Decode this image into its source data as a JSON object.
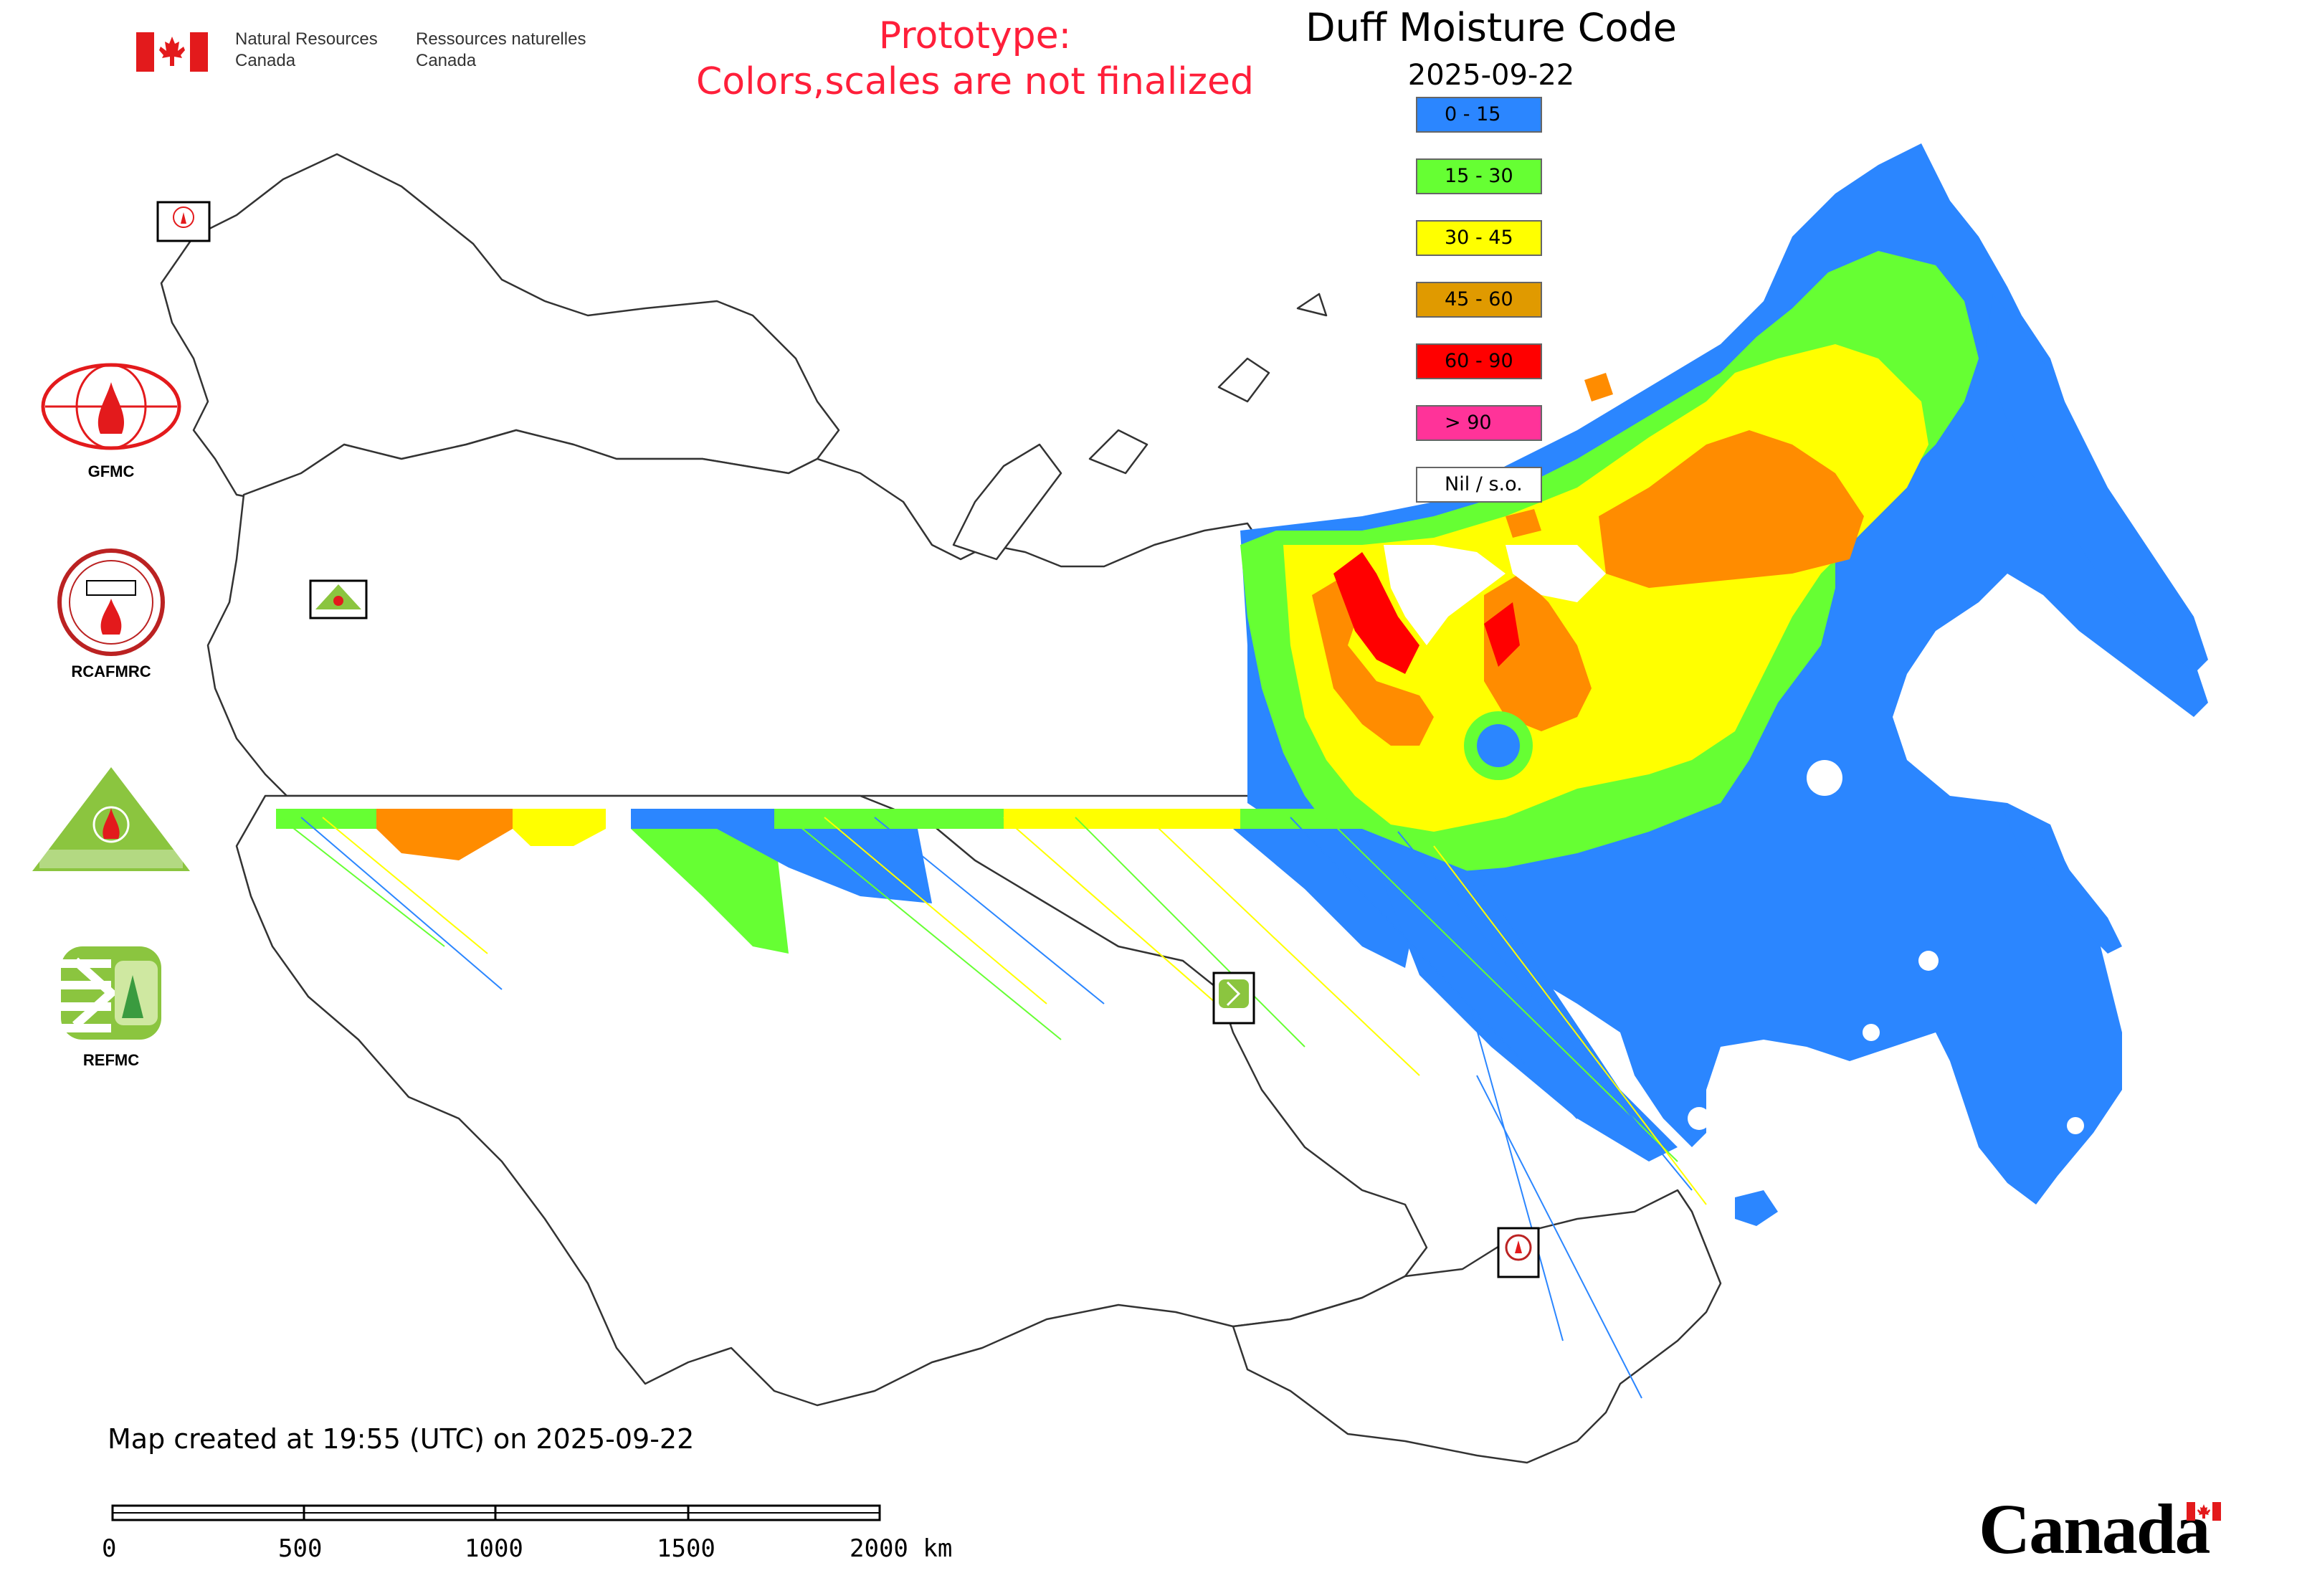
{
  "header": {
    "gov_en_line1": "Natural Resources",
    "gov_en_line2": "Canada",
    "gov_fr_line1": "Ressources naturelles",
    "gov_fr_line2": "Canada",
    "prototype_line1": "Prototype:",
    "prototype_line2": "Colors,scales are not finalized"
  },
  "map": {
    "title": "Duff Moisture Code",
    "date": "2025-09-22",
    "legend": [
      {
        "label": "0 - 15",
        "color": "#2b86ff"
      },
      {
        "label": "15 - 30",
        "color": "#66ff33"
      },
      {
        "label": "30 - 45",
        "color": "#ffff00"
      },
      {
        "label": "45 - 60",
        "color": "#e09a00"
      },
      {
        "label": "60 - 90",
        "color": "#ff0000"
      },
      {
        "label": "> 90",
        "color": "#ff3399"
      },
      {
        "label": "Nil / s.o.",
        "color": "#ffffff"
      }
    ]
  },
  "logos": {
    "gfmc": "GFMC",
    "rcafmrc": "RCAFMRC",
    "reefmc": "REEFMC",
    "refmc": "REFMC",
    "map_marker_gfmc": "GFMC",
    "map_marker_reefmc": "REEFMC",
    "map_marker_refmc": "REFMC",
    "map_marker_rcafmrc": "RCAFMRC"
  },
  "footer": {
    "created": "Map created at 19:55 (UTC) on 2025-09-22",
    "scale_labels": [
      "0",
      "500",
      "1000",
      "1500",
      "2000 km"
    ],
    "wordmark": "Canada"
  },
  "icons": [
    "canada-flag-icon",
    "gfmc-logo-icon",
    "rcafmrc-logo-icon",
    "reefmc-logo-icon",
    "refmc-logo-icon"
  ]
}
